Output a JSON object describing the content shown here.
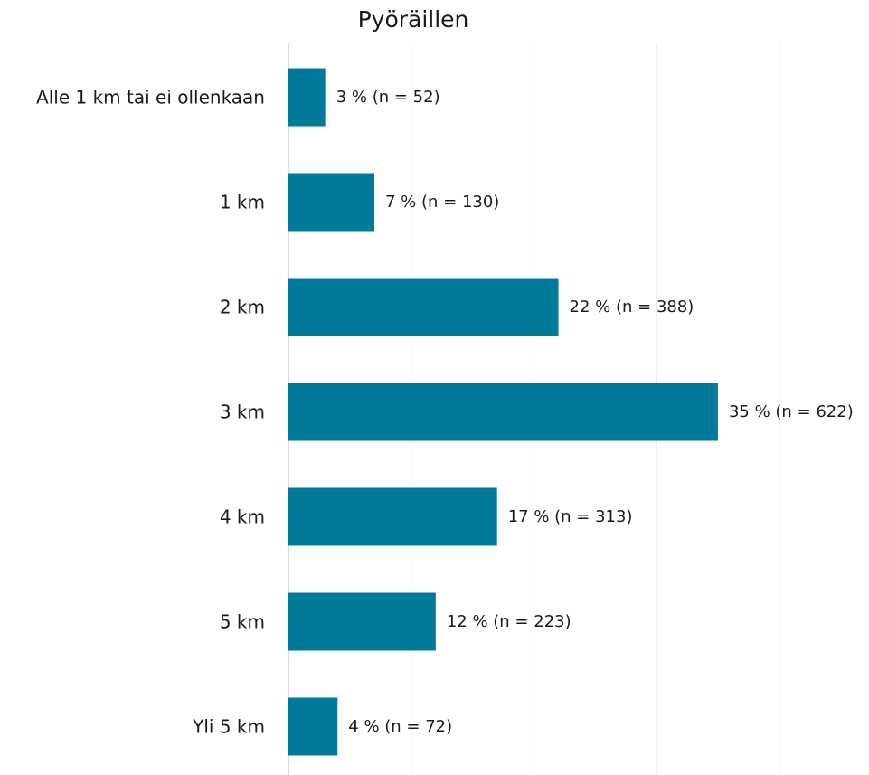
{
  "chart_data": {
    "type": "bar",
    "orientation": "horizontal",
    "title": "Pyöräillen",
    "xlabel": "",
    "ylabel": "",
    "categories": [
      "Alle 1 km tai ei ollenkaan",
      "1 km",
      "2 km",
      "3 km",
      "4 km",
      "5 km",
      "Yli 5 km"
    ],
    "series": [
      {
        "values": [
          3,
          7,
          22,
          35,
          17,
          12,
          4
        ],
        "counts": [
          52,
          130,
          388,
          622,
          313,
          223,
          72
        ],
        "data_labels": [
          "3 % (n = 52)",
          "7 % (n = 130)",
          "22 % (n = 388)",
          "35 % (n = 622)",
          "17 % (n = 313)",
          "12 % (n = 223)",
          "4 % (n = 72)"
        ]
      }
    ],
    "xlim": [
      0,
      40
    ],
    "grid": true,
    "legend": "none",
    "bar_color": "#00799a"
  }
}
